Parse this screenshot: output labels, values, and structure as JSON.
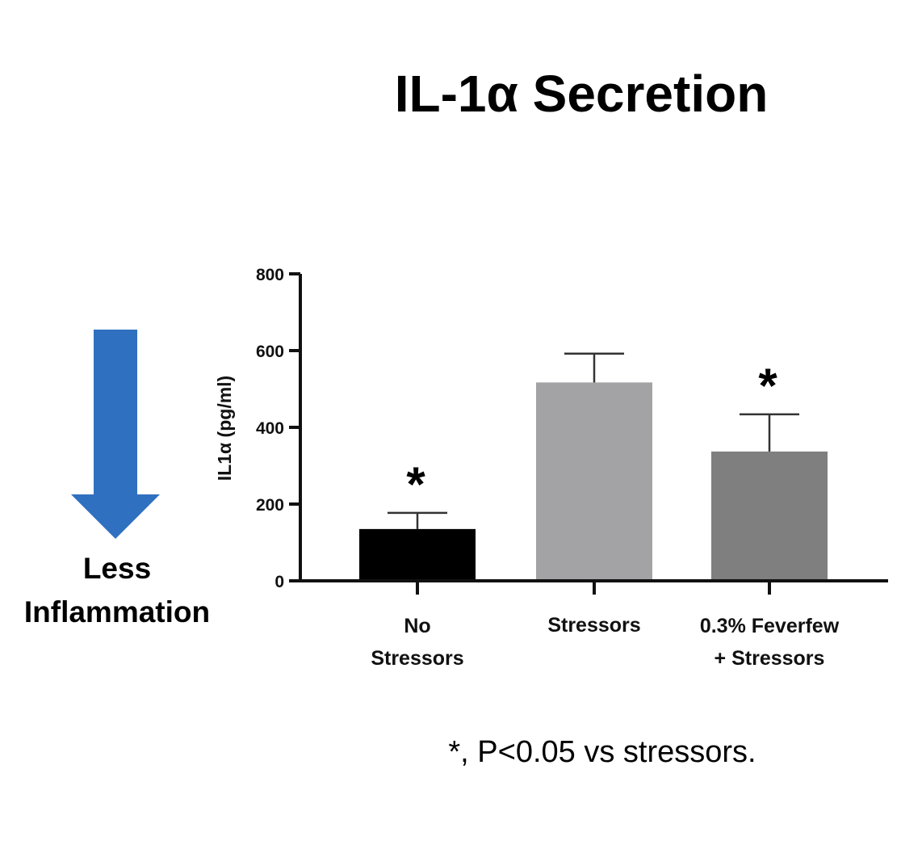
{
  "chart_data": {
    "type": "bar",
    "title": "IL-1α Secretion",
    "ylabel": "IL1α (pg/ml)",
    "xlabel": "",
    "ylim": [
      0,
      800
    ],
    "yticks": [
      0,
      200,
      400,
      600,
      800
    ],
    "grid": false,
    "categories": [
      [
        "No",
        "Stressors"
      ],
      [
        "Stressors"
      ],
      [
        "0.3% Feverfew",
        "+ Stressors"
      ]
    ],
    "values": [
      135,
      517,
      337
    ],
    "errors": [
      42,
      75,
      97
    ],
    "colors": [
      "#000000",
      "#a3a3a6",
      "#7f7f7f"
    ],
    "significance": [
      "*",
      "",
      "*"
    ],
    "footnote": "*, P<0.05 vs stressors."
  },
  "annotation": {
    "arrow_color": "#3070c0",
    "label_lines": [
      "Less",
      "Inflammation"
    ]
  }
}
